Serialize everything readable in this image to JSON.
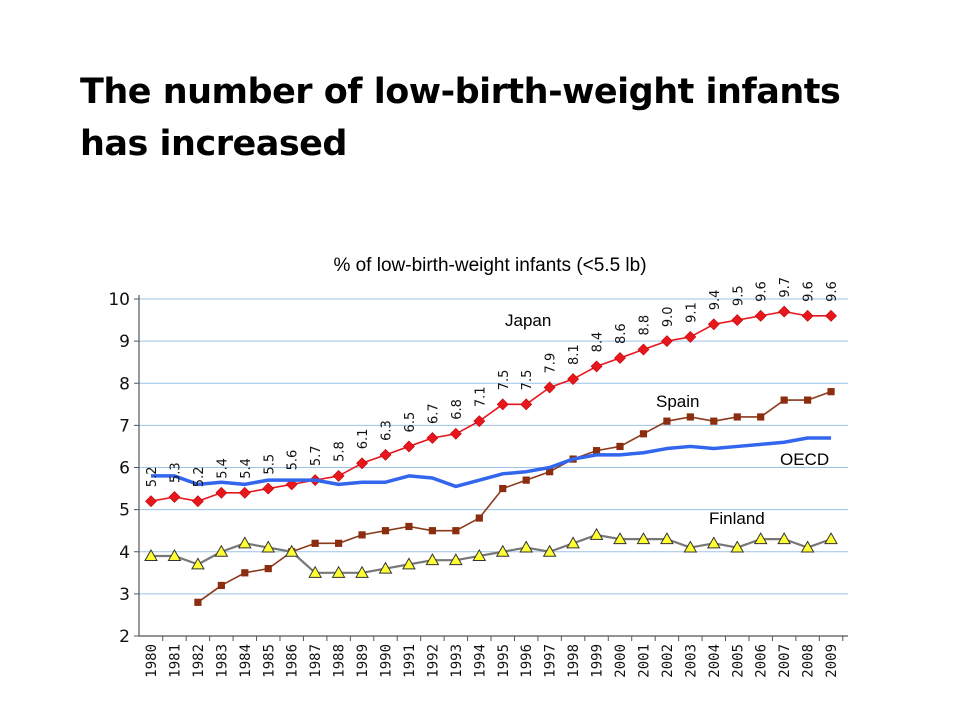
{
  "slide": {
    "title_line1": "The number of low-birth-weight infants",
    "title_line2": "has increased"
  },
  "chart_data": {
    "type": "line",
    "title": "% of low-birth-weight infants (<5.5 lb)",
    "xlabel": "",
    "ylabel": "",
    "ylim": [
      2,
      10
    ],
    "yticks": [
      2,
      3,
      4,
      5,
      6,
      7,
      8,
      9,
      10
    ],
    "grid": true,
    "legend": "inline labels",
    "x": [
      "1980",
      "1981",
      "1982",
      "1983",
      "1984",
      "1985",
      "1986",
      "1987",
      "1988",
      "1989",
      "1990",
      "1991",
      "1992",
      "1993",
      "1994",
      "1995",
      "1996",
      "1997",
      "1998",
      "1999",
      "2000",
      "2001",
      "2002",
      "2003",
      "2004",
      "2005",
      "2006",
      "2007",
      "2008",
      "2009"
    ],
    "series": [
      {
        "name": "Japan",
        "color": "#e8161d",
        "marker": "diamond",
        "values": [
          5.2,
          5.3,
          5.2,
          5.4,
          5.4,
          5.5,
          5.6,
          5.7,
          5.8,
          6.1,
          6.3,
          6.5,
          6.7,
          6.8,
          7.1,
          7.5,
          7.5,
          7.9,
          8.1,
          8.4,
          8.6,
          8.8,
          9.0,
          9.1,
          9.4,
          9.5,
          9.6,
          9.7,
          9.6,
          9.6
        ],
        "data_labels": [
          "5.2",
          "5.3",
          "5.2",
          "5.4",
          "5.4",
          "5.5",
          "5.6",
          "5.7",
          "5.8",
          "6.1",
          "6.3",
          "6.5",
          "6.7",
          "6.8",
          "7.1",
          "7.5",
          "7.5",
          "7.9",
          "8.1",
          "8.4",
          "8.6",
          "8.8",
          "9.0",
          "9.1",
          "9.4",
          "9.5",
          "9.6",
          "9.7",
          "9.6",
          "9.6"
        ]
      },
      {
        "name": "Spain",
        "color": "#8b3a1a",
        "marker": "square",
        "values": [
          null,
          null,
          2.8,
          3.2,
          3.5,
          3.6,
          4.0,
          4.2,
          4.2,
          4.4,
          4.5,
          4.6,
          4.5,
          4.5,
          4.8,
          5.5,
          5.7,
          5.9,
          6.2,
          6.4,
          6.5,
          6.8,
          7.1,
          7.2,
          7.1,
          7.2,
          7.2,
          7.6,
          7.6,
          7.8
        ]
      },
      {
        "name": "OECD",
        "color": "#3366ee",
        "marker": "none",
        "values": [
          5.8,
          5.8,
          5.6,
          5.65,
          5.6,
          5.7,
          5.7,
          5.7,
          5.6,
          5.65,
          5.65,
          5.8,
          5.75,
          5.55,
          5.7,
          5.85,
          5.9,
          6.0,
          6.2,
          6.3,
          6.3,
          6.35,
          6.45,
          6.5,
          6.45,
          6.5,
          6.55,
          6.6,
          6.7,
          6.7
        ]
      },
      {
        "name": "Finland",
        "color": "#808080",
        "marker": "triangle",
        "values": [
          3.9,
          3.9,
          3.7,
          4.0,
          4.2,
          4.1,
          4.0,
          3.5,
          3.5,
          3.5,
          3.6,
          3.7,
          3.8,
          3.8,
          3.9,
          4.0,
          4.1,
          4.0,
          4.2,
          4.4,
          4.3,
          4.3,
          4.3,
          4.1,
          4.2,
          4.1,
          4.3,
          4.3,
          4.1,
          4.3
        ]
      }
    ]
  }
}
